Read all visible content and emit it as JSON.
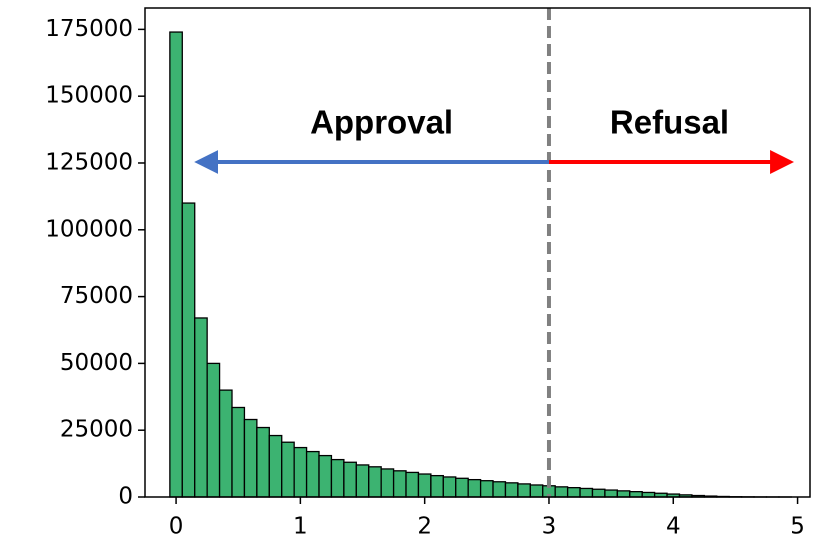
{
  "chart_data": {
    "type": "histogram",
    "bins": [
      -0.05,
      0.05,
      0.15,
      0.25,
      0.35,
      0.45,
      0.55,
      0.65,
      0.75,
      0.85,
      0.95,
      1.05,
      1.15,
      1.25,
      1.35,
      1.45,
      1.55,
      1.65,
      1.75,
      1.85,
      1.95,
      2.05,
      2.15,
      2.25,
      2.35,
      2.45,
      2.55,
      2.65,
      2.75,
      2.85,
      2.95,
      3.05,
      3.15,
      3.25,
      3.35,
      3.45,
      3.55,
      3.65,
      3.75,
      3.85,
      3.95,
      4.05,
      4.15,
      4.25,
      4.35,
      4.45,
      4.55,
      4.65,
      4.75,
      4.85,
      4.95
    ],
    "values": [
      174000,
      110000,
      67000,
      50000,
      40000,
      33500,
      29000,
      26000,
      23000,
      20500,
      18500,
      17000,
      15500,
      14000,
      13000,
      12000,
      11300,
      10500,
      9800,
      9200,
      8600,
      8000,
      7500,
      7000,
      6500,
      6100,
      5700,
      5300,
      4900,
      4500,
      4200,
      3800,
      3500,
      3200,
      2900,
      2600,
      2300,
      2000,
      1700,
      1400,
      1100,
      800,
      550,
      350,
      200,
      100,
      50,
      20,
      10,
      5
    ],
    "color": "#3cb371",
    "edgecolor": "#000000",
    "xlim": [
      -0.25,
      5.1
    ],
    "ylim": [
      0,
      183000
    ],
    "xticks": [
      0,
      1,
      2,
      3,
      4,
      5
    ],
    "yticks": [
      0,
      25000,
      50000,
      75000,
      100000,
      125000,
      150000,
      175000
    ],
    "threshold": 3,
    "threshold_color": "#808080",
    "annotations": [
      {
        "text": "Approval",
        "color": "#4472c4"
      },
      {
        "text": "Refusal",
        "color": "#ff0000"
      }
    ]
  }
}
